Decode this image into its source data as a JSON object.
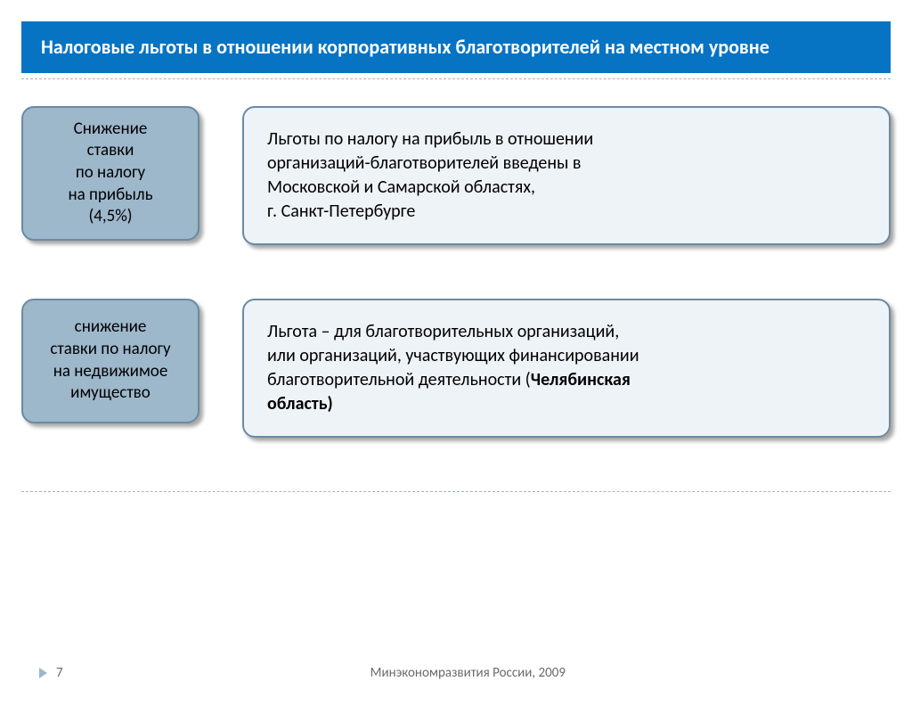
{
  "header": {
    "title": "Налоговые льготы в отношении корпоративных благотворителей на местном уровне",
    "bg_color": "#0673c3",
    "text_color": "#ffffff"
  },
  "rows": [
    {
      "left": {
        "lines": [
          "Снижение",
          "ставки",
          "по налогу",
          "на прибыль",
          "(4,5%)"
        ],
        "bg_color": "#9db7cb",
        "border_color": "#6b8aa3",
        "fontsize": 19
      },
      "right": {
        "lines": [
          {
            "text": "Льготы по налогу на прибыль в отношении"
          },
          {
            "text": "организаций-благотворителей  введены в"
          },
          {
            "text": "Московской и Самарской областях,"
          },
          {
            "text": "г. Санкт-Петербурге"
          }
        ],
        "bg_color": "#eef3f7",
        "border_color": "#6b8aa3",
        "fontsize": 20
      }
    },
    {
      "left": {
        "lines": [
          "снижение",
          "ставки по налогу",
          "на недвижимое",
          "имущество"
        ],
        "bg_color": "#9db7cb",
        "border_color": "#6b8aa3",
        "fontsize": 19
      },
      "right": {
        "lines": [
          {
            "text": "Льгота – для благотворительных организаций,"
          },
          {
            "text": "или организаций, участвующих финансировании"
          },
          {
            "text_pre": "благотворительной деятельности (",
            "bold": "Челябинская"
          },
          {
            "bold": "область)"
          }
        ],
        "bg_color": "#eef3f7",
        "border_color": "#6b8aa3",
        "fontsize": 20
      }
    }
  ],
  "footer": {
    "page_number": "7",
    "org_text": "Минэкономразвития России, 2009",
    "marker_color": "#9db7cb",
    "text_color": "#6a6a6a"
  },
  "styling": {
    "dashed_line_color": "#9fb7c9",
    "shadow": "4px 4px 4px rgba(0,0,0,0.35)",
    "border_radius": 14
  }
}
